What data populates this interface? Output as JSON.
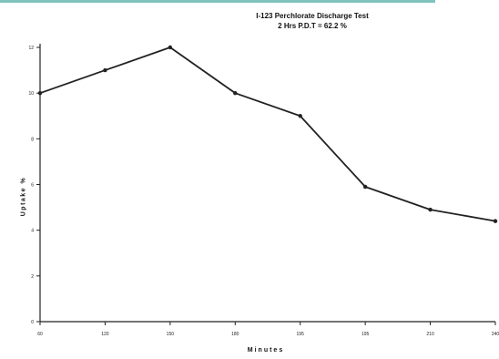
{
  "chart_data": {
    "type": "line",
    "title": "I-123 Perchlorate Discharge Test",
    "subtitle": "2 Hrs P.D.T = 62.2 %",
    "xlabel": "Minutes",
    "ylabel": "Uptake %",
    "x_ticks": [
      "60",
      "120",
      "150",
      "180",
      "195",
      "195",
      "210",
      "240"
    ],
    "y_ticks": [
      "0",
      "2",
      "4",
      "6",
      "8",
      "10",
      "12"
    ],
    "ylim": [
      0,
      12
    ],
    "grid": false,
    "series": [
      {
        "values": [
          10,
          11,
          12,
          10,
          9,
          5.9,
          4.9,
          4.4
        ]
      }
    ],
    "line_color": "#222222"
  }
}
